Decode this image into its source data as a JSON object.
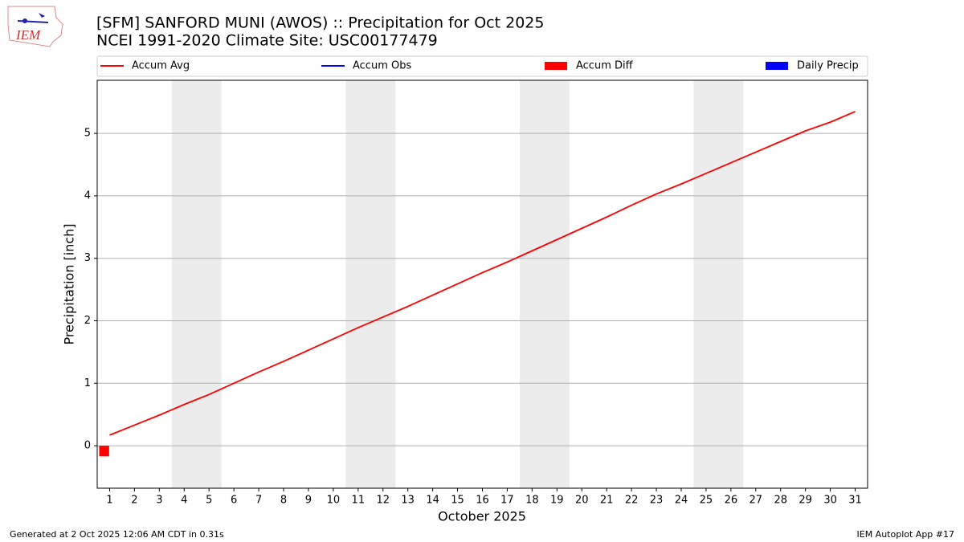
{
  "logo_text": "IEM",
  "chart_data": {
    "type": "line",
    "title": "[SFM] SANFORD MUNI (AWOS) :: Precipitation for Oct 2025",
    "subtitle": "NCEI 1991-2020 Climate Site: USC00177479",
    "x_label": "October 2025",
    "y_label": "Precipitation [inch]",
    "x": [
      1,
      2,
      3,
      4,
      5,
      6,
      7,
      8,
      9,
      10,
      11,
      12,
      13,
      14,
      15,
      16,
      17,
      18,
      19,
      20,
      21,
      22,
      23,
      24,
      25,
      26,
      27,
      28,
      29,
      30,
      31
    ],
    "series": [
      {
        "name": "Accum Avg",
        "color": "#ff0000",
        "kind": "line",
        "values": [
          0.17,
          0.33,
          0.49,
          0.66,
          0.82,
          1.0,
          1.18,
          1.35,
          1.53,
          1.71,
          1.89,
          2.06,
          2.23,
          2.41,
          2.59,
          2.77,
          2.94,
          3.12,
          3.3,
          3.48,
          3.66,
          3.85,
          4.03,
          4.19,
          4.36,
          4.53,
          4.7,
          4.87,
          5.04,
          5.18,
          5.35
        ]
      },
      {
        "name": "Accum Obs",
        "color": "#0000ff",
        "kind": "line",
        "values": [
          0,
          null,
          null,
          null,
          null,
          null,
          null,
          null,
          null,
          null,
          null,
          null,
          null,
          null,
          null,
          null,
          null,
          null,
          null,
          null,
          null,
          null,
          null,
          null,
          null,
          null,
          null,
          null,
          null,
          null,
          null
        ]
      },
      {
        "name": "Accum Diff",
        "color": "#ff0000",
        "kind": "bar",
        "values": [
          -0.17,
          null,
          null,
          null,
          null,
          null,
          null,
          null,
          null,
          null,
          null,
          null,
          null,
          null,
          null,
          null,
          null,
          null,
          null,
          null,
          null,
          null,
          null,
          null,
          null,
          null,
          null,
          null,
          null,
          null,
          null
        ]
      },
      {
        "name": "Daily Precip",
        "color": "#0000ff",
        "kind": "bar",
        "values": [
          0,
          null,
          null,
          null,
          null,
          null,
          null,
          null,
          null,
          null,
          null,
          null,
          null,
          null,
          null,
          null,
          null,
          null,
          null,
          null,
          null,
          null,
          null,
          null,
          null,
          null,
          null,
          null,
          null,
          null,
          null
        ]
      }
    ],
    "shaded_days": [
      [
        4,
        5
      ],
      [
        11,
        12
      ],
      [
        18,
        19
      ],
      [
        25,
        26
      ]
    ],
    "shade_color": "#ececec",
    "xlim": [
      0.5,
      31.5
    ],
    "ylim": [
      -0.68,
      5.85
    ],
    "xticks": [
      1,
      2,
      3,
      4,
      5,
      6,
      7,
      8,
      9,
      10,
      11,
      12,
      13,
      14,
      15,
      16,
      17,
      18,
      19,
      20,
      21,
      22,
      23,
      24,
      25,
      26,
      27,
      28,
      29,
      30,
      31
    ],
    "yticks": [
      0,
      1,
      2,
      3,
      4,
      5
    ],
    "grid": true,
    "legend": "top",
    "footer_left": "Generated at 2 Oct 2025 12:06 AM CDT in 0.31s",
    "footer_right": "IEM Autoplot App #17"
  }
}
